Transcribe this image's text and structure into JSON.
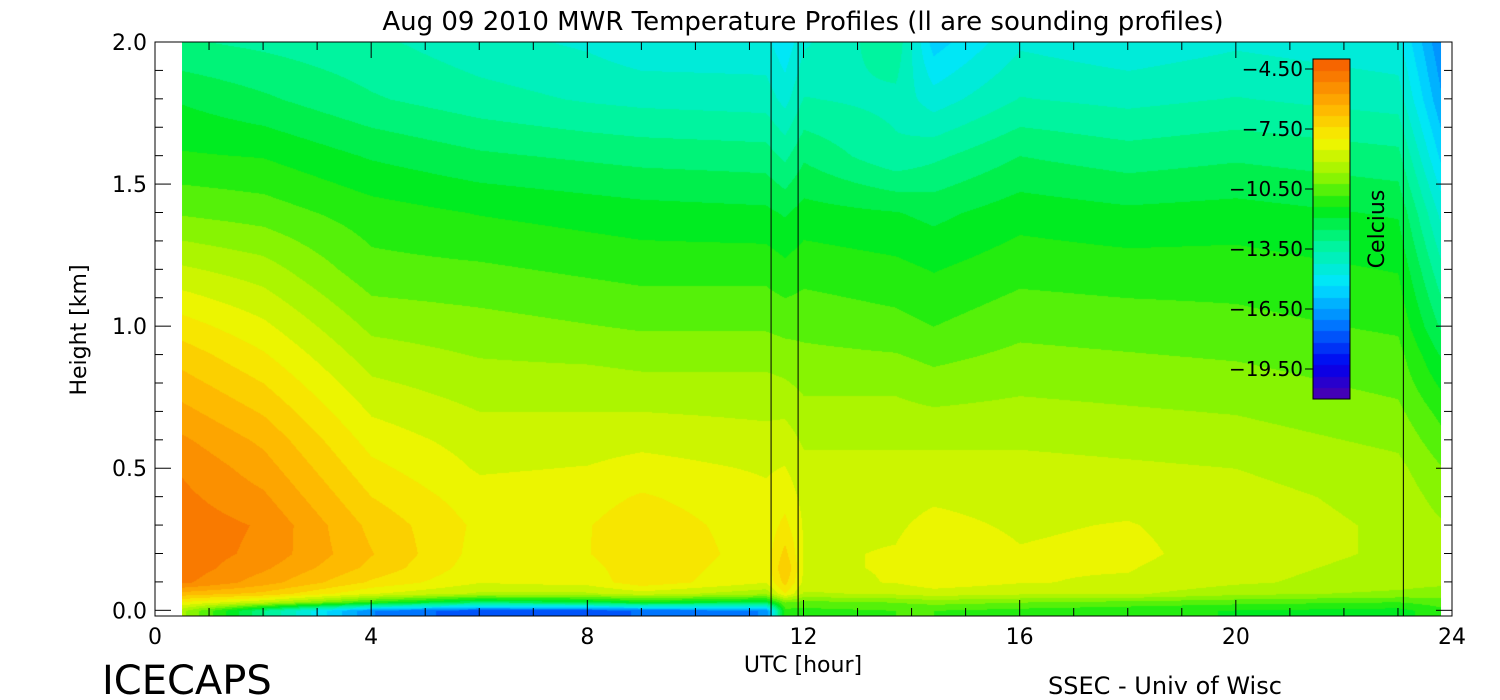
{
  "chart_data": {
    "type": "heatmap",
    "title": "Aug 09 2010 MWR Temperature Profiles (ll are sounding profiles)",
    "xlabel": "UTC [hour]",
    "ylabel": "Height [km]",
    "xlim": [
      0,
      24
    ],
    "ylim": [
      -0.02,
      2.0
    ],
    "x_ticks": [
      "0",
      "4",
      "8",
      "12",
      "16",
      "20",
      "24"
    ],
    "y_ticks": [
      "0.0",
      "0.5",
      "1.0",
      "1.5",
      "2.0"
    ],
    "data_extent_x": [
      0.5,
      23.8
    ],
    "sounding_profiles_utc": [
      11.4,
      11.9,
      23.1
    ],
    "colorbar": {
      "label": "Celcius",
      "range": [
        -21.0,
        -4.0
      ],
      "ticks": [
        "-4.50",
        "-7.50",
        "-10.50",
        "-13.50",
        "-16.50",
        "-19.50"
      ],
      "tick_values": [
        -4.5,
        -7.5,
        -10.5,
        -13.5,
        -16.5,
        -19.5
      ],
      "placement": "top-right"
    },
    "grid": false,
    "heights_km": [
      0.0,
      0.03,
      0.06,
      0.1,
      0.15,
      0.2,
      0.3,
      0.4,
      0.5,
      0.6,
      0.7,
      0.8,
      0.9,
      1.0,
      1.2,
      1.4,
      1.6,
      1.8,
      2.0
    ],
    "profiles": [
      {
        "utc": 0.5,
        "temps": [
          -9.5,
          -8.0,
          -6.5,
          -5.0,
          -4.8,
          -4.8,
          -4.8,
          -5.0,
          -5.2,
          -5.6,
          -6.1,
          -6.6,
          -7.1,
          -7.7,
          -9.0,
          -10.3,
          -11.3,
          -12.0,
          -13.0
        ]
      },
      {
        "utc": 2.0,
        "temps": [
          -13.0,
          -9.0,
          -7.0,
          -6.0,
          -5.6,
          -5.3,
          -5.2,
          -5.6,
          -6.0,
          -6.4,
          -6.9,
          -7.4,
          -7.9,
          -8.4,
          -9.4,
          -10.5,
          -11.4,
          -12.4,
          -13.2
        ]
      },
      {
        "utc": 4.0,
        "temps": [
          -17.0,
          -11.0,
          -8.5,
          -7.5,
          -7.0,
          -6.8,
          -7.0,
          -7.4,
          -7.8,
          -8.2,
          -8.6,
          -9.0,
          -9.4,
          -9.8,
          -10.6,
          -11.1,
          -12.0,
          -13.0,
          -13.5
        ]
      },
      {
        "utc": 6.0,
        "temps": [
          -18.0,
          -12.5,
          -9.2,
          -8.5,
          -8.3,
          -8.2,
          -8.1,
          -8.3,
          -8.6,
          -8.8,
          -9.1,
          -9.4,
          -9.7,
          -10.0,
          -10.7,
          -11.4,
          -12.4,
          -13.4,
          -14.0
        ]
      },
      {
        "utc": 8.0,
        "temps": [
          -18.0,
          -12.0,
          -9.2,
          -8.3,
          -8.2,
          -8.0,
          -8.0,
          -8.2,
          -8.5,
          -8.8,
          -9.1,
          -9.4,
          -9.8,
          -10.2,
          -10.9,
          -11.6,
          -12.6,
          -13.7,
          -14.3
        ]
      },
      {
        "utc": 9.0,
        "temps": [
          -17.5,
          -11.5,
          -8.8,
          -7.6,
          -7.5,
          -7.4,
          -7.6,
          -7.9,
          -8.3,
          -8.7,
          -9.1,
          -9.5,
          -9.9,
          -10.3,
          -11.0,
          -11.7,
          -12.7,
          -13.8,
          -14.6
        ]
      },
      {
        "utc": 11.3,
        "temps": [
          -17.0,
          -12.0,
          -9.5,
          -8.5,
          -8.4,
          -8.3,
          -8.3,
          -8.4,
          -8.6,
          -8.9,
          -9.2,
          -9.5,
          -9.9,
          -10.3,
          -11.0,
          -11.8,
          -12.8,
          -13.9,
          -14.6
        ]
      },
      {
        "utc": 11.65,
        "temps": [
          -11.0,
          -10.2,
          -8.0,
          -7.2,
          -6.8,
          -7.2,
          -7.8,
          -8.2,
          -8.5,
          -8.8,
          -9.2,
          -9.6,
          -10.0,
          -10.4,
          -11.2,
          -12.0,
          -13.2,
          -14.4,
          -15.2
        ]
      },
      {
        "utc": 12.0,
        "temps": [
          -11.0,
          -10.4,
          -9.2,
          -8.7,
          -8.6,
          -8.6,
          -8.6,
          -8.7,
          -8.9,
          -9.2,
          -9.5,
          -9.8,
          -10.1,
          -10.4,
          -11.0,
          -11.7,
          -12.6,
          -13.6,
          -14.3
        ]
      },
      {
        "utc": 13.7,
        "temps": [
          -10.8,
          -10.2,
          -9.0,
          -8.5,
          -8.5,
          -8.5,
          -8.6,
          -8.7,
          -8.9,
          -9.2,
          -9.5,
          -9.8,
          -10.2,
          -10.6,
          -11.2,
          -11.9,
          -13.5,
          -13.8,
          -13.2
        ]
      },
      {
        "utc": 14.4,
        "temps": [
          -10.8,
          -10.0,
          -8.8,
          -8.2,
          -8.2,
          -8.2,
          -8.4,
          -8.6,
          -8.9,
          -9.2,
          -9.6,
          -10.0,
          -10.4,
          -10.8,
          -11.4,
          -12.1,
          -13.2,
          -14.5,
          -15.6
        ]
      },
      {
        "utc": 16.0,
        "temps": [
          -11.0,
          -10.2,
          -9.0,
          -8.5,
          -8.5,
          -8.5,
          -8.6,
          -8.7,
          -8.9,
          -9.2,
          -9.5,
          -9.8,
          -10.1,
          -10.4,
          -11.0,
          -11.6,
          -12.5,
          -13.6,
          -14.3
        ]
      },
      {
        "utc": 18.0,
        "temps": [
          -11.2,
          -10.4,
          -9.0,
          -8.6,
          -8.5,
          -8.4,
          -8.5,
          -8.7,
          -9.0,
          -9.3,
          -9.6,
          -9.9,
          -10.2,
          -10.5,
          -11.1,
          -11.8,
          -12.8,
          -13.8,
          -14.6
        ]
      },
      {
        "utc": 20.0,
        "temps": [
          -11.4,
          -10.6,
          -9.5,
          -9.0,
          -8.9,
          -8.8,
          -8.8,
          -8.9,
          -9.1,
          -9.4,
          -9.7,
          -10.0,
          -10.3,
          -10.6,
          -11.1,
          -11.7,
          -12.6,
          -13.6,
          -14.3
        ]
      },
      {
        "utc": 23.0,
        "temps": [
          -11.6,
          -10.8,
          -9.8,
          -9.4,
          -9.3,
          -9.2,
          -9.2,
          -9.3,
          -9.5,
          -9.8,
          -10.1,
          -10.4,
          -10.6,
          -10.9,
          -11.4,
          -12.0,
          -12.9,
          -13.9,
          -14.6
        ]
      },
      {
        "utc": 23.8,
        "temps": [
          -11.0,
          -10.5,
          -10.0,
          -9.5,
          -9.3,
          -9.4,
          -9.6,
          -9.9,
          -10.2,
          -10.6,
          -11.0,
          -11.5,
          -12.0,
          -12.6,
          -13.5,
          -14.4,
          -15.5,
          -16.4,
          -17.0
        ]
      }
    ]
  },
  "footer": {
    "brand": "ICECAPS",
    "credit": "SSEC - Univ of Wisc"
  }
}
